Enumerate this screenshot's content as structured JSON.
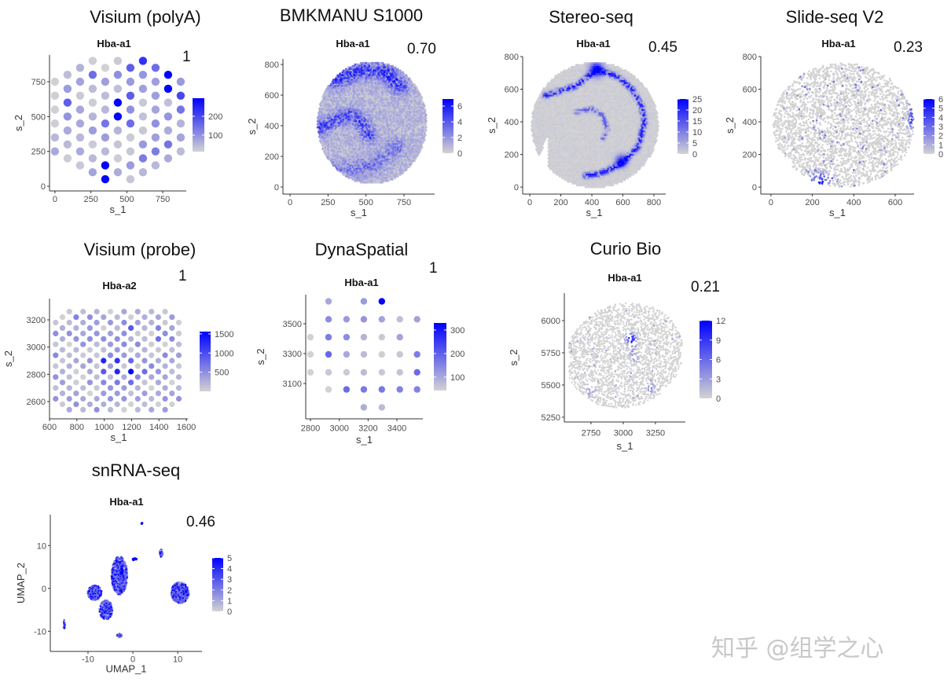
{
  "colors": {
    "low": "#D3D3D3",
    "high": "#0000FF",
    "axis": "#333333"
  },
  "watermark": "知乎 @组学之心",
  "chart_data": [
    {
      "id": "visium-polya",
      "type": "scatter",
      "title": "Visium (polyA)",
      "gene": "Hba-a1",
      "score": "1",
      "xlabel": "s_1",
      "ylabel": "s_2",
      "xlim": [
        -38,
        914
      ],
      "ylim": [
        -34,
        942
      ],
      "xticks": [
        0,
        250,
        500,
        750
      ],
      "yticks": [
        0,
        250,
        500,
        750
      ],
      "color_range": [
        12,
        296
      ],
      "legend_ticks": [
        100,
        200
      ],
      "high_spots": [
        [
          437,
          600,
          290
        ],
        [
          437,
          500,
          290
        ],
        [
          350,
          150,
          290
        ],
        [
          350,
          50,
          290
        ],
        [
          787,
          800,
          290
        ],
        [
          787,
          700,
          290
        ],
        [
          612,
          900,
          230
        ],
        [
          875,
          650,
          200
        ],
        [
          525,
          850,
          170
        ],
        [
          525,
          650,
          170
        ],
        [
          700,
          850,
          150
        ],
        [
          87,
          600,
          170
        ],
        [
          262,
          800,
          150
        ],
        [
          525,
          450,
          150
        ],
        [
          350,
          450,
          140
        ],
        [
          875,
          550,
          140
        ],
        [
          787,
          300,
          140
        ],
        [
          700,
          250,
          130
        ],
        [
          612,
          200,
          130
        ],
        [
          525,
          100,
          130
        ]
      ]
    },
    {
      "id": "bmkmanu-s1000",
      "type": "scatter",
      "title": "BMKMANU S1000",
      "gene": "Hba-a1",
      "score": "0.70",
      "xlabel": "s_1",
      "ylabel": "s_2",
      "xlim": [
        -47,
        952
      ],
      "ylim": [
        -46,
        836
      ],
      "xticks": [
        0,
        250,
        500,
        750
      ],
      "yticks": [
        0,
        200,
        400,
        600,
        800
      ],
      "color_range": [
        0,
        6.9
      ],
      "legend_ticks": [
        0,
        2,
        4,
        6
      ]
    },
    {
      "id": "stereo-seq",
      "type": "scatter",
      "title": "Stereo-seq",
      "gene": "Hba-a1",
      "score": "0.45",
      "xlabel": "s_1",
      "ylabel": "s_2",
      "xlim": [
        -46,
        876
      ],
      "ylim": [
        -43,
        800
      ],
      "xticks": [
        0,
        200,
        400,
        600,
        800
      ],
      "yticks": [
        0,
        200,
        400,
        600,
        800
      ],
      "color_range": [
        0,
        25
      ],
      "legend_ticks": [
        0,
        5,
        10,
        15,
        20,
        25
      ]
    },
    {
      "id": "slide-seq-v2",
      "type": "scatter",
      "title": "Slide-seq V2",
      "gene": "Hba-a1",
      "score": "0.23",
      "xlabel": "s_1",
      "ylabel": "s_2",
      "xlim": [
        -49,
        691
      ],
      "ylim": [
        -43,
        800
      ],
      "xticks": [
        0,
        200,
        400,
        600
      ],
      "yticks": [
        0,
        200,
        400,
        600,
        800
      ],
      "color_range": [
        0,
        6
      ],
      "legend_ticks": [
        0,
        1,
        2,
        3,
        4,
        5,
        6
      ]
    },
    {
      "id": "visium-probe",
      "type": "scatter",
      "title": "Visium (probe)",
      "gene": "Hba-a2",
      "score": "1",
      "xlabel": "s_1",
      "ylabel": "s_2",
      "xlim": [
        600,
        1611
      ],
      "ylim": [
        2473,
        3356
      ],
      "xticks": [
        600,
        800,
        1000,
        1200,
        1400,
        1600
      ],
      "yticks": [
        2600,
        2800,
        3000,
        3200
      ],
      "color_range": [
        0,
        1560
      ],
      "legend_ticks": [
        500,
        1000,
        1500
      ],
      "high_spots": [
        [
          1010,
          2910,
          1300
        ],
        [
          1110,
          2910,
          1200
        ],
        [
          1160,
          2830,
          1550
        ],
        [
          1060,
          2830,
          1300
        ],
        [
          960,
          2830,
          900
        ],
        [
          1210,
          2910,
          800
        ],
        [
          1260,
          2830,
          750
        ],
        [
          1160,
          3150,
          900
        ],
        [
          1380,
          3070,
          750
        ],
        [
          1210,
          2750,
          750
        ],
        [
          1110,
          2750,
          650
        ],
        [
          1010,
          2750,
          550
        ],
        [
          1430,
          3150,
          600
        ],
        [
          1480,
          3070,
          550
        ],
        [
          830,
          3230,
          600
        ]
      ]
    },
    {
      "id": "dynaspatial",
      "type": "scatter",
      "title": "DynaSpatial",
      "gene": "Hba-a1",
      "score": "1",
      "xlabel": "s_1",
      "ylabel": "s_2",
      "xlim": [
        2767,
        3580
      ],
      "ylim": [
        2863,
        3695
      ],
      "xticks": [
        2800,
        3000,
        3200,
        3400
      ],
      "yticks": [
        3100,
        3300,
        3500
      ],
      "color_range": [
        43,
        330
      ],
      "legend_ticks": [
        100,
        200,
        300
      ],
      "spots": [
        [
          2925,
          3650,
          100
        ],
        [
          3170,
          3650,
          120
        ],
        [
          3295,
          3650,
          330
        ],
        [
          2925,
          3530,
          140
        ],
        [
          3050,
          3530,
          120
        ],
        [
          3170,
          3530,
          130
        ],
        [
          3295,
          3530,
          110
        ],
        [
          3420,
          3530,
          70
        ],
        [
          3540,
          3530,
          110
        ],
        [
          2800,
          3410,
          45
        ],
        [
          2925,
          3410,
          160
        ],
        [
          3050,
          3410,
          140
        ],
        [
          3170,
          3410,
          85
        ],
        [
          3295,
          3410,
          55
        ],
        [
          3420,
          3410,
          110
        ],
        [
          2800,
          3295,
          45
        ],
        [
          2925,
          3295,
          190
        ],
        [
          3050,
          3295,
          100
        ],
        [
          3170,
          3295,
          75
        ],
        [
          3295,
          3295,
          50
        ],
        [
          3420,
          3295,
          60
        ],
        [
          3540,
          3295,
          160
        ],
        [
          2800,
          3175,
          45
        ],
        [
          2925,
          3175,
          60
        ],
        [
          3050,
          3175,
          55
        ],
        [
          3170,
          3175,
          75
        ],
        [
          3295,
          3175,
          60
        ],
        [
          3420,
          3175,
          65
        ],
        [
          3540,
          3175,
          185
        ],
        [
          2925,
          3060,
          45
        ],
        [
          3050,
          3060,
          185
        ],
        [
          3170,
          3060,
          165
        ],
        [
          3295,
          3060,
          165
        ],
        [
          3420,
          3060,
          155
        ],
        [
          3540,
          3060,
          155
        ],
        [
          3170,
          2940,
          95
        ],
        [
          3295,
          2940,
          75
        ]
      ]
    },
    {
      "id": "curio-bio",
      "type": "scatter",
      "title": "Curio Bio",
      "gene": "Hba-a1",
      "score": "0.21",
      "xlabel": "s_1",
      "ylabel": "s_2",
      "xlim": [
        2543,
        3482
      ],
      "ylim": [
        5213,
        6213
      ],
      "xticks": [
        2750,
        3000,
        3250
      ],
      "yticks": [
        5250,
        5500,
        5750,
        6000
      ],
      "color_range": [
        0,
        12
      ],
      "legend_ticks": [
        0,
        3,
        6,
        9,
        12
      ]
    },
    {
      "id": "snrna-seq",
      "type": "scatter",
      "title": "snRNA-seq",
      "gene": "Hba-a1",
      "score": "0.46",
      "xlabel": "UMAP_1",
      "ylabel": "UMAP_2",
      "xlim": [
        -18.4,
        15.4
      ],
      "ylim": [
        -14.7,
        17.2
      ],
      "xticks": [
        -10,
        0,
        10
      ],
      "yticks": [
        -10,
        0,
        10
      ],
      "color_range": [
        0,
        5
      ],
      "legend_ticks": [
        0,
        1,
        2,
        3,
        4,
        5
      ]
    }
  ]
}
